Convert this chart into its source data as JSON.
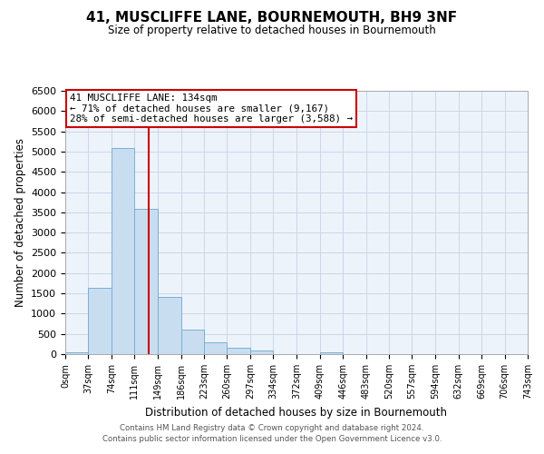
{
  "title": "41, MUSCLIFFE LANE, BOURNEMOUTH, BH9 3NF",
  "subtitle": "Size of property relative to detached houses in Bournemouth",
  "xlabel": "Distribution of detached houses by size in Bournemouth",
  "ylabel": "Number of detached properties",
  "footer_line1": "Contains HM Land Registry data © Crown copyright and database right 2024.",
  "footer_line2": "Contains public sector information licensed under the Open Government Licence v3.0.",
  "bar_edges": [
    0,
    37,
    74,
    111,
    149,
    186,
    223,
    260,
    297,
    334,
    372,
    409,
    446,
    483,
    520,
    557,
    594,
    632,
    669,
    706,
    743
  ],
  "bar_heights": [
    50,
    1630,
    5080,
    3580,
    1420,
    610,
    300,
    150,
    80,
    0,
    0,
    50,
    0,
    0,
    0,
    0,
    0,
    0,
    0,
    0
  ],
  "bar_color": "#c9ddf0",
  "bar_edge_color": "#7aafd4",
  "vline_x": 134,
  "vline_color": "#cc0000",
  "ylim": [
    0,
    6500
  ],
  "yticks": [
    0,
    500,
    1000,
    1500,
    2000,
    2500,
    3000,
    3500,
    4000,
    4500,
    5000,
    5500,
    6000,
    6500
  ],
  "annotation_title": "41 MUSCLIFFE LANE: 134sqm",
  "annotation_line1": "← 71% of detached houses are smaller (9,167)",
  "annotation_line2": "28% of semi-detached houses are larger (3,588) →",
  "annotation_box_color": "#cc0000",
  "grid_color": "#c8d8ea",
  "background_color": "#edf3fa",
  "x_tick_labels": [
    "0sqm",
    "37sqm",
    "74sqm",
    "111sqm",
    "149sqm",
    "186sqm",
    "223sqm",
    "260sqm",
    "297sqm",
    "334sqm",
    "372sqm",
    "409sqm",
    "446sqm",
    "483sqm",
    "520sqm",
    "557sqm",
    "594sqm",
    "632sqm",
    "669sqm",
    "706sqm",
    "743sqm"
  ]
}
